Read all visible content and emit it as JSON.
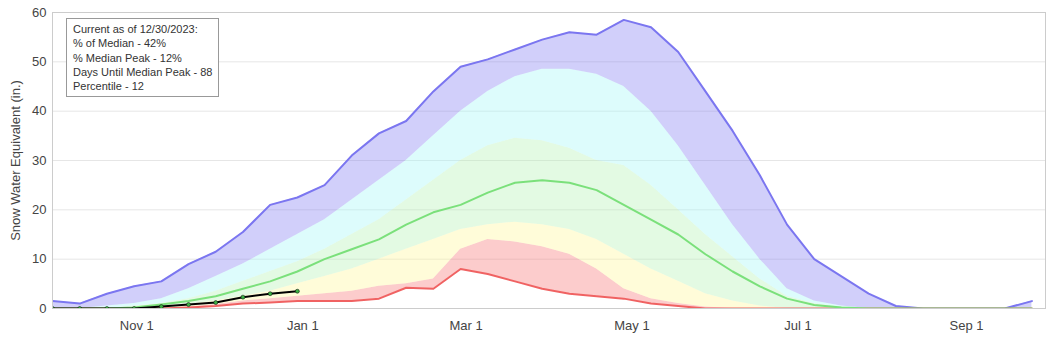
{
  "chart_data": {
    "type": "area",
    "y_label": "Snow Water Equivalent (in.)",
    "annotations": [
      "Current as of 12/30/2023:",
      "% of Median - 42%",
      "% Median Peak - 12%",
      "Days Until Median Peak - 88",
      "Percentile - 12"
    ],
    "x": [
      0,
      10,
      20,
      30,
      40,
      50,
      60,
      70,
      80,
      90,
      100,
      110,
      120,
      130,
      140,
      150,
      160,
      170,
      180,
      190,
      200,
      210,
      220,
      230,
      240,
      250,
      260,
      270,
      280,
      290,
      300,
      310,
      320,
      330,
      340,
      350,
      360
    ],
    "xlim": [
      0,
      365
    ],
    "xticks": [
      {
        "value": 31,
        "label": "Nov 1"
      },
      {
        "value": 92,
        "label": "Jan 1"
      },
      {
        "value": 152,
        "label": "Mar 1"
      },
      {
        "value": 213,
        "label": "May 1"
      },
      {
        "value": 274,
        "label": "Jul 1"
      },
      {
        "value": 336,
        "label": "Sep 1"
      }
    ],
    "ylim": [
      0,
      60
    ],
    "yticks": [
      0,
      10,
      20,
      30,
      40,
      50,
      60
    ],
    "grid": true,
    "series": [
      {
        "type": "line",
        "color": "#f06262",
        "values": [
          0,
          0,
          0,
          0,
          0,
          0.2,
          0.5,
          1,
          1.2,
          1.5,
          1.5,
          1.5,
          2,
          4.2,
          4,
          8,
          7,
          5.5,
          4,
          3,
          2.5,
          2,
          1,
          0.5,
          0,
          0,
          0,
          0,
          0,
          0,
          0,
          0,
          0,
          0,
          0,
          0,
          0
        ]
      },
      {
        "type": "area",
        "color": "#f56e6e",
        "values": [
          0,
          0,
          0,
          0,
          0,
          0.3,
          0.8,
          1.5,
          2,
          2.5,
          3,
          3.5,
          4.5,
          5,
          6,
          12,
          14,
          13.5,
          12.5,
          11,
          8,
          4,
          2,
          1,
          0.3,
          0,
          0,
          0,
          0,
          0,
          0,
          0,
          0,
          0,
          0,
          0,
          0
        ]
      },
      {
        "type": "area",
        "color": "#fff591",
        "values": [
          0,
          0,
          0,
          0,
          0.3,
          0.8,
          1.5,
          2.5,
          3.5,
          5,
          6.5,
          8,
          10,
          12,
          14,
          16,
          17,
          17.5,
          17,
          16,
          14,
          11,
          8,
          5.5,
          3,
          1.5,
          0.5,
          0,
          0,
          0,
          0,
          0,
          0,
          0,
          0,
          0,
          0
        ]
      },
      {
        "type": "area",
        "color": "#b0f0b0",
        "values": [
          0,
          0,
          0,
          0.5,
          1,
          2,
          3.5,
          5.5,
          7.5,
          9.5,
          12,
          15,
          18,
          22,
          26,
          30,
          33,
          34.5,
          34,
          32.5,
          30,
          29,
          25,
          20,
          15,
          10.5,
          6,
          2.5,
          1,
          0.3,
          0,
          0,
          0,
          0,
          0,
          0,
          0
        ]
      },
      {
        "type": "area",
        "color": "#9ff5f5",
        "values": [
          0,
          0,
          0.5,
          1,
          2,
          4,
          6.5,
          9,
          12,
          15,
          18,
          22,
          26,
          30,
          35,
          40,
          44,
          47,
          48.5,
          48.5,
          47.5,
          45,
          40,
          33,
          25,
          17,
          10,
          4,
          1.5,
          0.5,
          0,
          0,
          0,
          0,
          0,
          0,
          0
        ]
      },
      {
        "type": "area",
        "color": "#7b76f0",
        "line_style": "solid",
        "values": [
          1.5,
          1,
          3,
          4.5,
          5.5,
          9,
          11.5,
          15.5,
          21,
          22.5,
          25,
          31,
          35.5,
          38,
          44,
          49,
          50.5,
          52.5,
          54.5,
          56,
          55.5,
          58.5,
          57,
          52,
          44,
          36,
          27,
          17,
          10,
          6.5,
          3,
          0.5,
          0,
          0,
          0,
          0,
          1.5
        ]
      },
      {
        "type": "line",
        "color": "#7be07b",
        "values": [
          0,
          0,
          0,
          0.2,
          0.8,
          1.5,
          2.5,
          4,
          5.5,
          7.5,
          10,
          12,
          14,
          17,
          19.5,
          21,
          23.5,
          25.5,
          26,
          25.5,
          24,
          21,
          18,
          15,
          11,
          7.5,
          4.5,
          2,
          0.7,
          0.2,
          0,
          0,
          0,
          0,
          0,
          0,
          0
        ]
      },
      {
        "type": "line",
        "color": "#000000",
        "marker": "circle",
        "x": [
          0,
          10,
          20,
          30,
          40,
          50,
          60,
          70,
          80,
          90
        ],
        "values": [
          0,
          0,
          0,
          0,
          0.4,
          0.8,
          1.2,
          2.3,
          3,
          3.5
        ]
      }
    ]
  }
}
